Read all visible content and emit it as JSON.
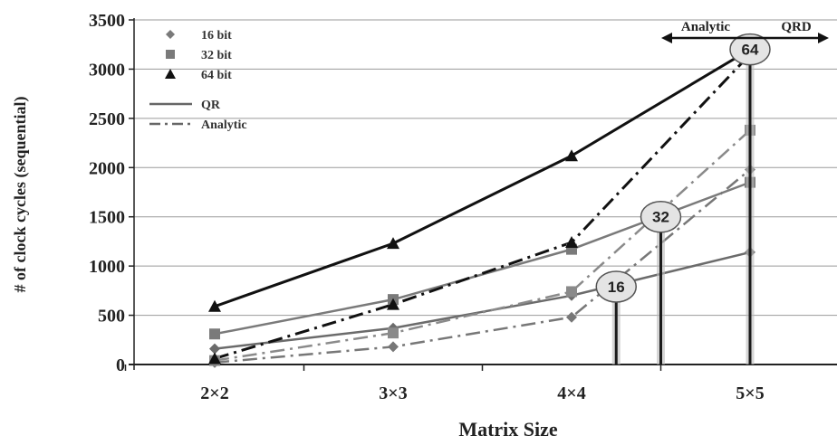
{
  "chart_data": {
    "type": "line",
    "xlabel": "Matrix Size",
    "ylabel": "# of clock cycles (sequential)",
    "categories": [
      "2×2",
      "3×3",
      "4×4",
      "5×5"
    ],
    "ylim": [
      0,
      3500
    ],
    "yticks": [
      0,
      500,
      1000,
      1500,
      2000,
      2500,
      3000,
      3500
    ],
    "grid": "horizontal",
    "legend": {
      "placement": "top-left",
      "markers": [
        {
          "label": "16 bit",
          "marker": "diamond"
        },
        {
          "label": "32 bit",
          "marker": "square"
        },
        {
          "label": "64 bit",
          "marker": "triangle"
        }
      ],
      "lines": [
        {
          "label": "QR",
          "style": "solid"
        },
        {
          "label": "Analytic",
          "style": "dash-dot"
        }
      ]
    },
    "series": [
      {
        "bits": "16",
        "method": "QR",
        "marker": "diamond",
        "dash": "solid",
        "color": "#6b6b6b",
        "width": 2.5,
        "values": [
          160,
          370,
          700,
          1140
        ]
      },
      {
        "bits": "32",
        "method": "QR",
        "marker": "square",
        "dash": "solid",
        "color": "#7a7a7a",
        "width": 2.5,
        "values": [
          310,
          660,
          1170,
          1850
        ]
      },
      {
        "bits": "64",
        "method": "QR",
        "marker": "triangle",
        "dash": "solid",
        "color": "#111111",
        "width": 3,
        "values": [
          590,
          1230,
          2120,
          3200
        ]
      },
      {
        "bits": "16",
        "method": "Analytic",
        "marker": "diamond",
        "dash": "dashdot",
        "color": "#777777",
        "width": 2.5,
        "values": [
          20,
          180,
          480,
          1980
        ]
      },
      {
        "bits": "32",
        "method": "Analytic",
        "marker": "square",
        "dash": "dashdot",
        "color": "#8a8a8a",
        "width": 2.5,
        "values": [
          40,
          320,
          740,
          2380
        ]
      },
      {
        "bits": "64",
        "method": "Analytic",
        "marker": "triangle",
        "dash": "dashdot",
        "color": "#111111",
        "width": 3,
        "values": [
          60,
          610,
          1240,
          3150
        ]
      }
    ],
    "annotations": {
      "regions": {
        "left": "Analytic",
        "right": "QRD"
      },
      "crossovers": [
        {
          "label": "64",
          "x_pos": 4.0,
          "y": 3200
        },
        {
          "label": "32",
          "x_pos": 3.5,
          "y": 1500
        },
        {
          "label": "16",
          "x_pos": 3.25,
          "y": 790
        }
      ]
    }
  }
}
